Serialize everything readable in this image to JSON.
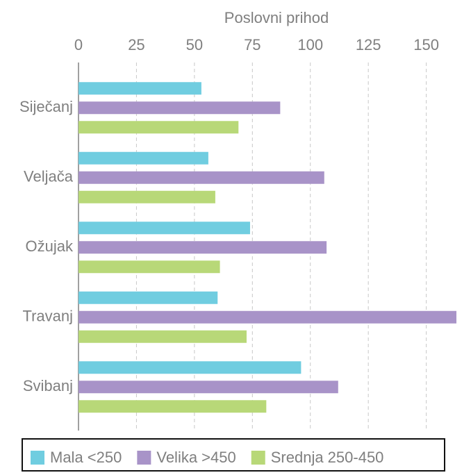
{
  "chart_data": {
    "type": "bar",
    "orientation": "horizontal",
    "x_label": "Poslovni prihod",
    "categories": [
      "Siječanj",
      "Veljača",
      "Ožujak",
      "Travanj",
      "Svibanj"
    ],
    "series": [
      {
        "name": "Mala <250",
        "color": "#70cde0",
        "values": [
          53,
          56,
          74,
          60,
          96
        ]
      },
      {
        "name": "Velika >450",
        "color": "#a893c8",
        "values": [
          87,
          106,
          107,
          163,
          112
        ]
      },
      {
        "name": "Srednja 250-450",
        "color": "#b8d878",
        "values": [
          69,
          59,
          61,
          72.5,
          81
        ]
      }
    ],
    "xlim": [
      0,
      163
    ],
    "xticks": [
      0,
      25,
      50,
      75,
      100,
      125,
      150
    ],
    "grid": true,
    "legend": "bottom"
  }
}
